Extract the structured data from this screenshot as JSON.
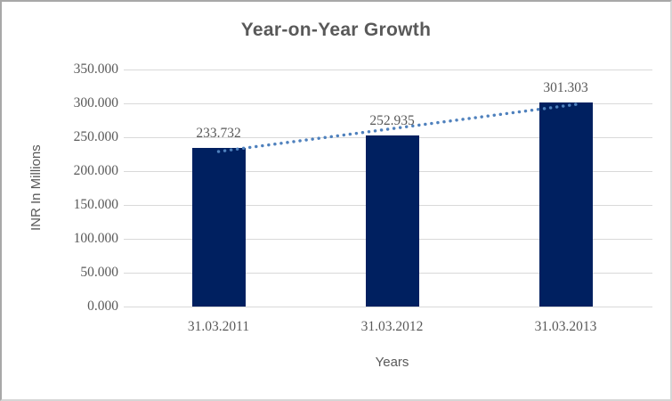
{
  "chart_data": {
    "type": "bar",
    "title": "Year-on-Year Growth",
    "xlabel": "Years",
    "ylabel": "INR In Millions",
    "categories": [
      "31.03.2011",
      "31.03.2012",
      "31.03.2013"
    ],
    "values": [
      233.732,
      252.935,
      301.303
    ],
    "data_labels": [
      "233.732",
      "252.935",
      "301.303"
    ],
    "ylim": [
      0,
      350
    ],
    "ytick_step": 50,
    "ytick_labels": [
      "0.000",
      "50.000",
      "100.000",
      "150.000",
      "200.000",
      "250.000",
      "300.000",
      "350.000"
    ],
    "grid": true,
    "legend_position": "none",
    "bar_color": "#002060",
    "gridline_color": "#D9D9D9",
    "text_color": "#595959",
    "trendline": {
      "type": "linear",
      "style": "dotted",
      "color": "#4F81BD"
    }
  }
}
